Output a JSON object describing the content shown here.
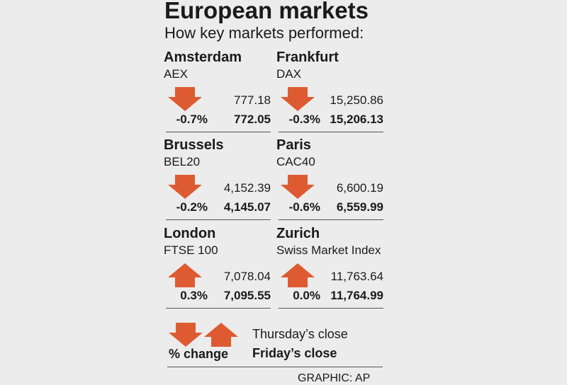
{
  "header": {
    "title": "European markets",
    "subtitle": "How key markets performed:"
  },
  "colors": {
    "arrow": "#de5b31",
    "background": "#ececec",
    "text": "#1a1a1a"
  },
  "chart_data": {
    "type": "table",
    "title": "European markets",
    "subtitle": "How key markets performed:",
    "columns": [
      "city",
      "index",
      "thursday_close",
      "friday_close",
      "pct_change",
      "direction"
    ],
    "markets": [
      {
        "city": "Amsterdam",
        "index": "AEX",
        "thursday_close": "777.18",
        "friday_close": "772.05",
        "pct_change": "-0.7%",
        "direction": "down"
      },
      {
        "city": "Frankfurt",
        "index": "DAX",
        "thursday_close": "15,250.86",
        "friday_close": "15,206.13",
        "pct_change": "-0.3%",
        "direction": "down"
      },
      {
        "city": "Brussels",
        "index": "BEL20",
        "thursday_close": "4,152.39",
        "friday_close": "4,145.07",
        "pct_change": "-0.2%",
        "direction": "down"
      },
      {
        "city": "Paris",
        "index": "CAC40",
        "thursday_close": "6,600.19",
        "friday_close": "6,559.99",
        "pct_change": "-0.6%",
        "direction": "down"
      },
      {
        "city": "London",
        "index": "FTSE 100",
        "thursday_close": "7,078.04",
        "friday_close": "7,095.55",
        "pct_change": "0.3%",
        "direction": "up"
      },
      {
        "city": "Zurich",
        "index": "Swiss Market Index",
        "thursday_close": "11,763.64",
        "friday_close": "11,764.99",
        "pct_change": "0.0%",
        "direction": "up"
      }
    ]
  },
  "legend": {
    "pct_label": "% change",
    "thursday_label": "Thursday’s close",
    "friday_label": "Friday’s close"
  },
  "credit": "GRAPHIC: AP"
}
